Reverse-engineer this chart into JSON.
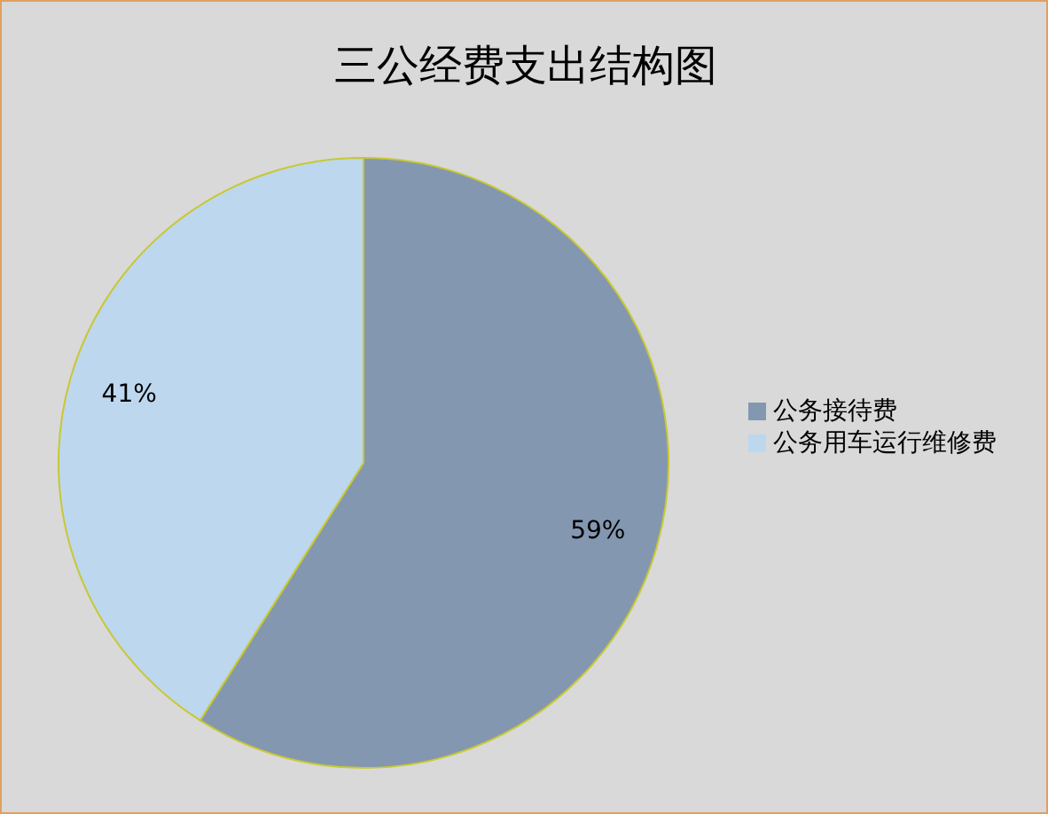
{
  "chart_data": {
    "type": "pie",
    "title": "三公经费支出结构图",
    "categories": [
      "公务接待费",
      "公务用车运行维修费"
    ],
    "values": [
      59,
      41
    ],
    "colors": [
      "#8497b0",
      "#bdd7ee"
    ],
    "value_labels": [
      "59%",
      "41%"
    ],
    "legend": "right"
  }
}
